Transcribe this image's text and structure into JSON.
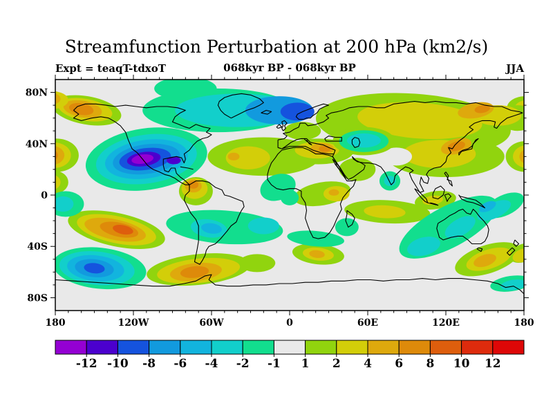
{
  "title": "Streamfunction Perturbation at 200 hPa (km2/s)",
  "header": {
    "experiment": "Expt = teaqT-tdxoT",
    "period": "068kyr BP - 068kyr BP",
    "season": "JJA"
  },
  "chart_data": {
    "type": "filled-contour-map",
    "title": "Streamfunction Perturbation at 200 hPa (km2/s)",
    "projection": "equirectangular",
    "lon_range": [
      -180,
      180
    ],
    "lat_range": [
      -90,
      90
    ],
    "x_axis": {
      "tick_lons": [
        -180,
        -120,
        -60,
        0,
        60,
        120,
        180
      ],
      "tick_labels": [
        "180",
        "120W",
        "60W",
        "0",
        "60E",
        "120E",
        "180"
      ],
      "minor_step_deg": 10
    },
    "y_axis": {
      "tick_lats": [
        80,
        40,
        0,
        -40,
        -80
      ],
      "tick_labels": [
        "80N",
        "40N",
        "0",
        "40S",
        "80S"
      ],
      "minor_step_deg": 10
    },
    "neutral_color": "#E9E9E9",
    "palette": [
      "#9400D3",
      "#4B00CE",
      "#1553DE",
      "#129ADE",
      "#12B4DE",
      "#12CFCB",
      "#12DE8E",
      "#E9E9E9",
      "#91D40E",
      "#D3CE09",
      "#DEA90D",
      "#DE8A0A",
      "#DE5E0D",
      "#DE2B0D",
      "#DE0707"
    ],
    "colorbar": {
      "boundary_labels": [
        "-12",
        "-10",
        "-8",
        "-6",
        "-4",
        "-2",
        "-1",
        "1",
        "2",
        "4",
        "6",
        "8",
        "10",
        "12"
      ],
      "levels": [
        -12,
        -10,
        -8,
        -6,
        -4,
        -2,
        -1,
        1,
        2,
        4,
        6,
        8,
        10,
        12
      ]
    },
    "contour_blobs": [
      {
        "name": "alaska-arctic-positive",
        "rings": [
          [
            -156,
            66,
            27,
            11,
            10,
            8
          ],
          [
            -157,
            66.5,
            21,
            8.5,
            10,
            9
          ],
          [
            -159,
            67,
            15,
            6.5,
            10,
            10
          ],
          [
            -160,
            67,
            9.5,
            4.5,
            10,
            11
          ],
          [
            -183,
            74,
            13,
            7,
            0,
            9
          ],
          [
            -185,
            75,
            9,
            5,
            0,
            10
          ]
        ]
      },
      {
        "name": "arctic-right-edge-positive",
        "rings": [
          [
            181,
            68,
            14,
            9,
            0,
            8
          ],
          [
            183,
            68,
            10,
            6,
            0,
            9
          ],
          [
            185,
            68,
            7,
            4,
            0,
            10
          ]
        ]
      },
      {
        "name": "pacific-left-edge-positive-35N",
        "rings": [
          [
            -179,
            31,
            17,
            13,
            0,
            8
          ],
          [
            -181,
            31,
            13,
            10,
            0,
            9
          ],
          [
            -183,
            31,
            10,
            7.5,
            0,
            10
          ],
          [
            -185,
            31,
            7,
            5,
            0,
            11
          ],
          [
            -186,
            31,
            4,
            3,
            0,
            12
          ]
        ]
      },
      {
        "name": "pacific-right-edge-positive-30N",
        "rings": [
          [
            181,
            30,
            15,
            12,
            0,
            8
          ],
          [
            183,
            30,
            11.5,
            9,
            0,
            9
          ],
          [
            185,
            30,
            8.5,
            6.5,
            0,
            10
          ],
          [
            186.5,
            30,
            6,
            4.5,
            0,
            11
          ],
          [
            188,
            30,
            4,
            3,
            0,
            12
          ]
        ]
      },
      {
        "name": "left-edge-tropical-positive",
        "rings": [
          [
            -181,
            10,
            11,
            9,
            0,
            8
          ],
          [
            -183,
            10,
            7,
            6,
            0,
            9
          ]
        ]
      },
      {
        "name": "atlantic-mediterranean-positive-band",
        "rings": [
          [
            -20,
            30,
            43,
            15,
            0,
            8
          ],
          [
            22,
            34,
            27,
            10,
            0,
            8
          ],
          [
            52,
            20,
            14,
            9,
            0,
            8
          ],
          [
            -32,
            29,
            17,
            9,
            0,
            9
          ],
          [
            -43,
            30,
            4.5,
            3,
            0,
            10
          ],
          [
            21,
            35,
            17,
            6.5,
            0,
            9
          ],
          [
            25,
            36,
            9,
            4.5,
            0,
            10
          ],
          [
            27,
            36,
            4.5,
            2.5,
            0,
            11
          ]
        ]
      },
      {
        "name": "colombia-positive",
        "rings": [
          [
            -72,
            3,
            13,
            11,
            0,
            8
          ],
          [
            -73,
            5,
            10,
            8,
            0,
            9
          ],
          [
            -74,
            7,
            6.5,
            5,
            0,
            10
          ],
          [
            -74,
            8,
            4,
            3,
            0,
            11
          ]
        ]
      },
      {
        "name": "eurasia-positive-field",
        "rings": [
          [
            95,
            55,
            75,
            24,
            4,
            8
          ],
          [
            120,
            30,
            45,
            16,
            0,
            8
          ],
          [
            10,
            50,
            14,
            7,
            0,
            8
          ],
          [
            175,
            60,
            14,
            10,
            0,
            8
          ],
          [
            100,
            58,
            48,
            14,
            4,
            9
          ],
          [
            115,
            32,
            28,
            11,
            0,
            9
          ],
          [
            160,
            62,
            18,
            8,
            0,
            9
          ],
          [
            128,
            38,
            12,
            6,
            -15,
            10
          ],
          [
            128,
            38,
            7,
            3.5,
            -15,
            11
          ],
          [
            143,
            66,
            14,
            6,
            -10,
            10
          ],
          [
            148,
            67,
            6,
            3,
            -10,
            11
          ]
        ]
      },
      {
        "name": "equatorial-africa-positive",
        "rings": [
          [
            25,
            1,
            22,
            9,
            -10,
            8
          ],
          [
            36,
            1,
            10,
            6,
            0,
            9
          ],
          [
            34,
            2,
            4,
            2.5,
            0,
            10
          ]
        ]
      },
      {
        "name": "indian-ocean-positive-band",
        "rings": [
          [
            75,
            -13,
            33,
            9,
            3,
            8
          ],
          [
            73,
            -13,
            16,
            5,
            3,
            9
          ],
          [
            112,
            -4,
            16,
            7,
            -8,
            8
          ],
          [
            110,
            -4,
            8,
            3.5,
            -8,
            9
          ]
        ]
      },
      {
        "name": "new-zealand-positive",
        "rings": [
          [
            152,
            -50,
            26,
            11,
            -18,
            8
          ],
          [
            180,
            -45,
            12,
            7,
            -20,
            8
          ],
          [
            153,
            -50,
            18,
            7.5,
            -18,
            9
          ],
          [
            179,
            -47,
            8,
            5,
            -20,
            9
          ],
          [
            150,
            -51,
            9,
            4.5,
            -18,
            10
          ]
        ]
      },
      {
        "name": "south-pacific-positive",
        "rings": [
          [
            -133,
            -27,
            38,
            13,
            12,
            8
          ],
          [
            -133,
            -27,
            31,
            10.5,
            12,
            9
          ],
          [
            -134,
            -27,
            24,
            8,
            12,
            10
          ],
          [
            -131,
            -27,
            15,
            5.5,
            12,
            11
          ],
          [
            -128,
            -27,
            8,
            3.5,
            12,
            12
          ]
        ]
      },
      {
        "name": "drake-passage-positive",
        "rings": [
          [
            -70,
            -58,
            40,
            12,
            -6,
            8
          ],
          [
            -25,
            -53,
            14,
            7,
            0,
            8
          ],
          [
            -70,
            -59,
            32,
            9.5,
            -6,
            9
          ],
          [
            -72,
            -60,
            20,
            7,
            -6,
            10
          ],
          [
            -73,
            -60,
            11,
            4.5,
            -6,
            11
          ]
        ]
      },
      {
        "name": "south-indian-positive",
        "rings": [
          [
            22,
            -46,
            20,
            8,
            6,
            8
          ],
          [
            22,
            -46,
            12,
            5,
            6,
            9
          ],
          [
            21,
            -46,
            6,
            3,
            6,
            10
          ]
        ]
      },
      {
        "name": "tibet-neutral-gap",
        "rings": [
          [
            82,
            30,
            12,
            7,
            0,
            7
          ]
        ]
      },
      {
        "name": "arctic-canada-scandinavia-negative",
        "rings": [
          [
            -55,
            66,
            58,
            17,
            0,
            6
          ],
          [
            -80,
            83,
            24,
            9,
            0,
            6
          ],
          [
            -40,
            66,
            48,
            13,
            0,
            5
          ],
          [
            -8,
            66,
            26,
            11,
            0,
            3
          ],
          [
            6,
            65,
            13,
            7,
            0,
            2
          ]
        ]
      },
      {
        "name": "north-america-negative",
        "rings": [
          [
            -110,
            28,
            47,
            24,
            -8,
            6
          ],
          [
            -110,
            28,
            39,
            19,
            -8,
            5
          ],
          [
            -110,
            28,
            32,
            15,
            -8,
            4
          ],
          [
            -110,
            28,
            26,
            11.5,
            -8,
            3
          ],
          [
            -111,
            28,
            20,
            8.5,
            -8,
            2
          ],
          [
            -112,
            28,
            13,
            5.5,
            -8,
            1
          ],
          [
            -113,
            28,
            8.5,
            3.6,
            -8,
            0
          ],
          [
            -89,
            27,
            5.5,
            3,
            0,
            1
          ]
        ]
      },
      {
        "name": "west-africa-negative",
        "rings": [
          [
            -9,
            6,
            14,
            10,
            -20,
            6
          ],
          [
            0,
            -2,
            7,
            6,
            0,
            6
          ]
        ]
      },
      {
        "name": "caspian-negative",
        "rings": [
          [
            57,
            42,
            24,
            11,
            0,
            8
          ],
          [
            57,
            42,
            19,
            8.5,
            0,
            6
          ],
          [
            57,
            42.5,
            13,
            5.5,
            0,
            5
          ]
        ]
      },
      {
        "name": "india-negative",
        "rings": [
          [
            77,
            11,
            8,
            7.5,
            0,
            6
          ],
          [
            77,
            11,
            4.5,
            4,
            0,
            5
          ]
        ]
      },
      {
        "name": "australia-negative",
        "rings": [
          [
            122,
            -25,
            42,
            16,
            -28,
            6
          ],
          [
            165,
            -8,
            16,
            8,
            -25,
            6
          ],
          [
            103,
            -40,
            13,
            7,
            -15,
            5
          ],
          [
            131,
            -25,
            13,
            6.5,
            -30,
            5
          ],
          [
            157,
            -12,
            14,
            6,
            -25,
            5
          ],
          [
            152,
            -9,
            7,
            3.5,
            -25,
            4
          ]
        ]
      },
      {
        "name": "south-pacific-negative",
        "rings": [
          [
            -146,
            -57,
            36,
            16,
            6,
            6
          ],
          [
            -148,
            -57,
            29,
            13,
            6,
            5
          ],
          [
            -149,
            -57,
            22,
            10,
            6,
            4
          ],
          [
            -150,
            -57,
            15,
            7,
            6,
            3
          ],
          [
            -150,
            -57,
            8,
            4,
            6,
            2
          ]
        ]
      },
      {
        "name": "argentina-south-atlantic-negative",
        "rings": [
          [
            -50,
            -25,
            45,
            13,
            4,
            6
          ],
          [
            -62,
            -26,
            14,
            7,
            8,
            5
          ],
          [
            -60,
            -26,
            8,
            4,
            8,
            4
          ],
          [
            -20,
            -24,
            12,
            6.5,
            0,
            5
          ]
        ]
      },
      {
        "name": "south-africa-negative",
        "rings": [
          [
            20,
            -34,
            22,
            6,
            5,
            6
          ],
          [
            44,
            -25,
            9,
            7,
            0,
            6
          ]
        ]
      },
      {
        "name": "antarctic-coast-negative-right",
        "rings": [
          [
            170,
            -69,
            16,
            6,
            -8,
            6
          ],
          [
            172,
            -70,
            10,
            4,
            -8,
            5
          ]
        ]
      },
      {
        "name": "equatorial-pacific-negative-left",
        "rings": [
          [
            -172,
            -7,
            14,
            10,
            0,
            6
          ],
          [
            -174,
            -7,
            8,
            6,
            0,
            5
          ]
        ]
      }
    ]
  }
}
